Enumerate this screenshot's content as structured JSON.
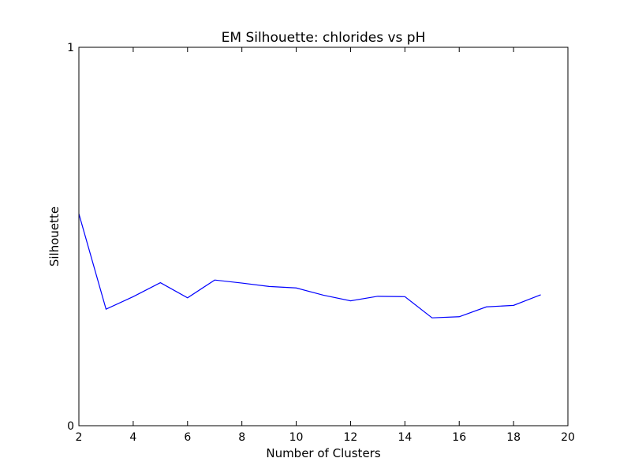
{
  "chart_data": {
    "type": "line",
    "title": "EM Silhouette: chlorides vs pH",
    "xlabel": "Number of Clusters",
    "ylabel": "Silhouette",
    "xlim": [
      2,
      20
    ],
    "ylim": [
      0,
      1
    ],
    "xticks": [
      2,
      4,
      6,
      8,
      10,
      12,
      14,
      16,
      18,
      20
    ],
    "yticks": [
      0,
      1
    ],
    "xtick_labels": [
      "2",
      "4",
      "6",
      "8",
      "10",
      "12",
      "14",
      "16",
      "18",
      "20"
    ],
    "ytick_labels": [
      "0",
      "1"
    ],
    "grid": false,
    "legend": false,
    "series": [
      {
        "color": "#0000ff",
        "x": [
          2,
          3,
          4,
          5,
          6,
          7,
          8,
          9,
          10,
          11,
          12,
          13,
          14,
          15,
          16,
          17,
          18,
          19
        ],
        "y": [
          0.56,
          0.308,
          0.341,
          0.378,
          0.338,
          0.385,
          0.377,
          0.368,
          0.364,
          0.345,
          0.33,
          0.342,
          0.341,
          0.285,
          0.288,
          0.314,
          0.318,
          0.346
        ]
      }
    ]
  }
}
